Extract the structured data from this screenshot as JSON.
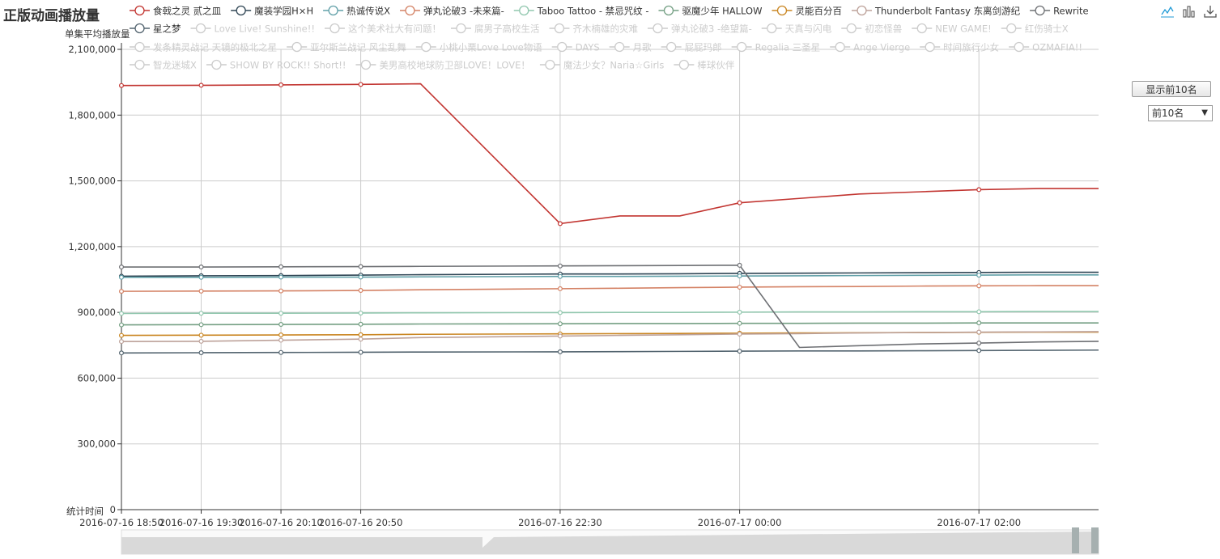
{
  "controls": {
    "show_top_button": "显示前10名",
    "top_select_value": "前10名"
  },
  "toolbox": [
    "line-icon",
    "bar-icon",
    "download-icon"
  ],
  "chart_data": {
    "type": "line",
    "title": "正版动画播放量",
    "ylabel": "单集平均播放量",
    "xlabel": "统计时间",
    "ylim": [
      0,
      2100000
    ],
    "y_ticks": [
      0,
      300000,
      600000,
      900000,
      1200000,
      1500000,
      1800000,
      2100000
    ],
    "y_tick_labels": [
      "0",
      "300,000",
      "600,000",
      "900,000",
      "1,200,000",
      "1,500,000",
      "1,800,000",
      "2,100,000"
    ],
    "x_tick_labels": [
      "2016-07-16 18:50",
      "2016-07-16 19:30",
      "2016-07-16 20:10",
      "2016-07-16 20:50",
      "2016-07-16 22:30",
      "2016-07-17 00:00",
      "2016-07-17 02:00"
    ],
    "x": [
      "2016-07-16 18:50",
      "2016-07-16 19:30",
      "2016-07-16 20:10",
      "2016-07-16 20:50",
      "2016-07-16 21:20",
      "2016-07-16 22:30",
      "2016-07-16 23:00",
      "2016-07-16 23:30",
      "2016-07-17 00:00",
      "2016-07-17 00:30",
      "2016-07-17 01:00",
      "2016-07-17 01:30",
      "2016-07-17 02:00",
      "2016-07-17 02:30",
      "2016-07-17 03:00"
    ],
    "grid": true,
    "series": [
      {
        "name": "食戟之灵 贰之皿",
        "color": "#c23531",
        "active": true,
        "values": [
          1935000,
          1936000,
          1938000,
          1940000,
          1943000,
          1305000,
          1340000,
          1340000,
          1400000,
          1420000,
          1440000,
          1450000,
          1460000,
          1465000,
          1465000
        ]
      },
      {
        "name": "魔装学园H×H",
        "color": "#2f4554",
        "active": true,
        "values": [
          1065000,
          1067000,
          1068000,
          1070000,
          1072000,
          1075000,
          1075000,
          1076000,
          1078000,
          1079000,
          1080000,
          1081000,
          1082000,
          1083000,
          1083000
        ]
      },
      {
        "name": "热诚传说X",
        "color": "#61a0a8",
        "active": true,
        "values": [
          1060000,
          1060000,
          1061000,
          1061000,
          1062000,
          1064000,
          1064000,
          1065000,
          1066000,
          1067000,
          1068000,
          1069000,
          1070000,
          1071000,
          1071000
        ]
      },
      {
        "name": "弹丸论破3 -未来篇-",
        "color": "#d48265",
        "active": true,
        "values": [
          996000,
          997000,
          998000,
          1000000,
          1003000,
          1008000,
          1010000,
          1013000,
          1015000,
          1017000,
          1018000,
          1020000,
          1021000,
          1022000,
          1022000
        ]
      },
      {
        "name": "Taboo Tattoo - 禁忌咒纹 -",
        "color": "#91c7ae",
        "active": true,
        "values": [
          895000,
          896000,
          896000,
          897000,
          898000,
          899000,
          900000,
          900000,
          901000,
          902000,
          902000,
          903000,
          903000,
          904000,
          904000
        ]
      },
      {
        "name": "驱魔少年 HALLOW",
        "color": "#749f83",
        "active": true,
        "values": [
          843000,
          844000,
          845000,
          846000,
          847000,
          848000,
          849000,
          849000,
          850000,
          850000,
          851000,
          851000,
          852000,
          852000,
          852000
        ]
      },
      {
        "name": "灵能百分百",
        "color": "#ca8622",
        "active": true,
        "values": [
          795000,
          796000,
          797000,
          798000,
          800000,
          802000,
          803000,
          804000,
          805000,
          806000,
          807000,
          808000,
          809000,
          810000,
          810000
        ]
      },
      {
        "name": "Thunderbolt Fantasy 东离剑游纪",
        "color": "#bda29a",
        "active": true,
        "values": [
          767000,
          768000,
          773000,
          778000,
          785000,
          792000,
          795000,
          798000,
          801000,
          803000,
          806000,
          808000,
          810000,
          811000,
          812000
        ]
      },
      {
        "name": "Rewrite",
        "color": "#6e7074",
        "active": true,
        "values": [
          1107000,
          1107000,
          1108000,
          1109000,
          1110000,
          1112000,
          1113000,
          1114000,
          1115000,
          740000,
          748000,
          756000,
          760000,
          765000,
          768000
        ]
      },
      {
        "name": "星之梦",
        "color": "#546570",
        "active": true,
        "values": [
          715000,
          716000,
          717000,
          718000,
          719000,
          720000,
          721000,
          722000,
          723000,
          724000,
          724000,
          725000,
          726000,
          727000,
          728000
        ]
      },
      {
        "name": "Love Live! Sunshine!!",
        "active": false
      },
      {
        "name": "这个美术社大有问题！",
        "active": false
      },
      {
        "name": "腐男子高校生活",
        "active": false
      },
      {
        "name": "齐木楠雄的灾难",
        "active": false
      },
      {
        "name": "弹丸论破3 -绝望篇-",
        "active": false
      },
      {
        "name": "天真与闪电",
        "active": false
      },
      {
        "name": "初恋怪兽",
        "active": false
      },
      {
        "name": "NEW GAME!",
        "active": false
      },
      {
        "name": "红伤骑士X",
        "active": false
      },
      {
        "name": "发条精灵战记 天镜的极北之星",
        "active": false
      },
      {
        "name": "亚尔斯兰战记 风尘乱舞",
        "active": false
      },
      {
        "name": "小桃小栗Love Love物语",
        "active": false
      },
      {
        "name": "DAYS",
        "active": false
      },
      {
        "name": "月歌",
        "active": false
      },
      {
        "name": "屁屁玛郎",
        "active": false
      },
      {
        "name": "Regalia 三圣星",
        "active": false
      },
      {
        "name": "Ange Vierge",
        "active": false
      },
      {
        "name": "时间旅行少女",
        "active": false
      },
      {
        "name": "OZMAFIA!!",
        "active": false
      },
      {
        "name": "智龙迷城X",
        "active": false
      },
      {
        "name": "SHOW BY ROCK!! Short!!",
        "active": false
      },
      {
        "name": "美男高校地球防卫部LOVE！LOVE！",
        "active": false
      },
      {
        "name": "魔法少女？Naria☆Girls",
        "active": false
      },
      {
        "name": "棒球伙伴",
        "active": false
      }
    ]
  }
}
